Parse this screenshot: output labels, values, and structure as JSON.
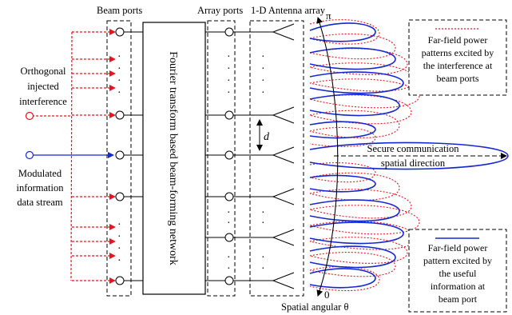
{
  "labels": {
    "beam_ports": "Beam ports",
    "array_ports": "Array ports",
    "antenna_array": "1-D Antenna array",
    "network": "Fourier transform based beam-forming network",
    "orthogonal": [
      "Orthogonal",
      "injected",
      "interference"
    ],
    "modulated": [
      "Modulated",
      "information",
      "data stream"
    ],
    "spacing": "d",
    "pi": "π",
    "zero": "0",
    "spatial_angular": "Spatial angular θ",
    "secure": [
      "Secure communication",
      "spatial direction"
    ]
  },
  "legend": {
    "interference": [
      "Far-field power",
      "patterns excited by",
      "the interference at",
      "beam ports"
    ],
    "useful": [
      "Far-field power",
      "pattern excited by",
      "the useful",
      "information at",
      "beam port"
    ]
  },
  "colors": {
    "interference": "#e8141b",
    "useful": "#1428d2",
    "line": "#000000"
  }
}
